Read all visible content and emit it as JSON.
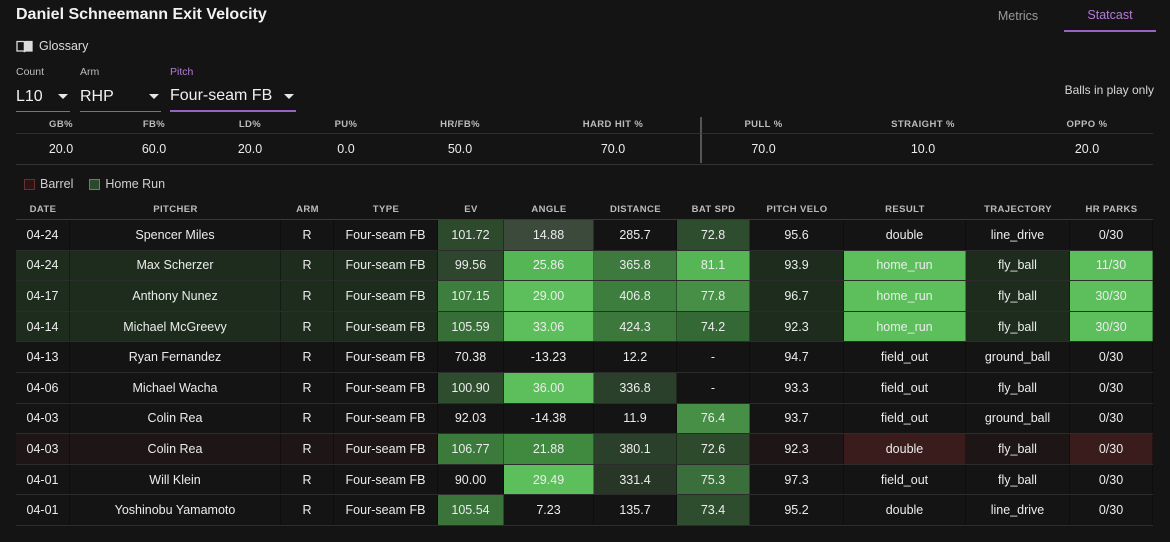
{
  "page": {
    "title": "Daniel Schneemann Exit Velocity"
  },
  "tabs": [
    {
      "label": "Metrics",
      "active": false
    },
    {
      "label": "Statcast",
      "active": true
    }
  ],
  "glossary": {
    "label": "Glossary",
    "icon": "book-icon"
  },
  "filters": {
    "count": {
      "label": "Count",
      "value": "L10"
    },
    "arm": {
      "label": "Arm",
      "value": "RHP"
    },
    "pitch": {
      "label": "Pitch",
      "value": "Four-seam FB"
    }
  },
  "balls_in_play_note": "Balls in play only",
  "summary": {
    "headers": [
      "GB%",
      "FB%",
      "LD%",
      "PU%",
      "HR/FB%",
      "HARD HIT %",
      "PULL %",
      "STRAIGHT %",
      "OPPO %"
    ],
    "values": [
      "20.0",
      "60.0",
      "20.0",
      "0.0",
      "50.0",
      "70.0",
      "70.0",
      "10.0",
      "20.0"
    ]
  },
  "legend": [
    {
      "label": "Barrel",
      "color": "#2a1414"
    },
    {
      "label": "Home Run",
      "color": "#2b4a2b"
    }
  ],
  "colors": {
    "accent": "#9a62c2",
    "background": "#141414",
    "green_strong": "#5cbf5c",
    "green_mid": "#3f8a3f",
    "green_dark": "#284228",
    "red_dark": "#3a1c1c"
  },
  "table": {
    "headers": [
      "DATE",
      "PITCHER",
      "ARM",
      "TYPE",
      "EV",
      "ANGLE",
      "DISTANCE",
      "BAT SPD",
      "PITCH VELO",
      "RESULT",
      "TRAJECTORY",
      "HR PARKS"
    ],
    "rows": [
      {
        "row_type": "normal",
        "cells": [
          "04-24",
          "Spencer Miles",
          "R",
          "Four-seam FB",
          "101.72",
          "14.88",
          "285.7",
          "72.8",
          "95.6",
          "double",
          "line_drive",
          "0/30"
        ],
        "shading": [
          "",
          "",
          "",
          "",
          "#2d4a2d",
          "#3c4a3c",
          "",
          "#2e4d2e",
          "",
          "",
          "",
          ""
        ]
      },
      {
        "row_type": "home_run",
        "cells": [
          "04-24",
          "Max Scherzer",
          "R",
          "Four-seam FB",
          "99.56",
          "25.86",
          "365.8",
          "81.1",
          "93.9",
          "home_run",
          "fly_ball",
          "11/30"
        ],
        "shading": [
          "",
          "",
          "",
          "",
          "#2d462d",
          "#55b655",
          "#3e7a3e",
          "#56b656",
          "",
          "#5cbf5c",
          "",
          "#5cbf5c"
        ]
      },
      {
        "row_type": "home_run",
        "cells": [
          "04-17",
          "Anthony Nunez",
          "R",
          "Four-seam FB",
          "107.15",
          "29.00",
          "406.8",
          "77.8",
          "96.7",
          "home_run",
          "fly_ball",
          "30/30"
        ],
        "shading": [
          "",
          "",
          "",
          "",
          "#3d7d3d",
          "#5cbf5c",
          "#3d7d3d",
          "#478f47",
          "",
          "#5cbf5c",
          "",
          "#5cbf5c"
        ]
      },
      {
        "row_type": "home_run",
        "cells": [
          "04-14",
          "Michael McGreevy",
          "R",
          "Four-seam FB",
          "105.59",
          "33.06",
          "424.3",
          "74.2",
          "92.3",
          "home_run",
          "fly_ball",
          "30/30"
        ],
        "shading": [
          "",
          "",
          "",
          "",
          "#376e37",
          "#5cbf5c",
          "#3c783c",
          "#346834",
          "",
          "#5cbf5c",
          "",
          "#5cbf5c"
        ]
      },
      {
        "row_type": "normal",
        "cells": [
          "04-13",
          "Ryan Fernandez",
          "R",
          "Four-seam FB",
          "70.38",
          "-13.23",
          "12.2",
          "-",
          "94.7",
          "field_out",
          "ground_ball",
          "0/30"
        ],
        "shading": [
          "",
          "",
          "",
          "",
          "",
          "",
          "",
          "",
          "",
          "",
          "",
          ""
        ]
      },
      {
        "row_type": "normal",
        "cells": [
          "04-06",
          "Michael Wacha",
          "R",
          "Four-seam FB",
          "100.90",
          "36.00",
          "336.8",
          "-",
          "93.3",
          "field_out",
          "fly_ball",
          "0/30"
        ],
        "shading": [
          "",
          "",
          "",
          "",
          "#2e4d2e",
          "#5cbf5c",
          "#2b402b",
          "",
          "",
          "",
          "",
          ""
        ]
      },
      {
        "row_type": "normal",
        "cells": [
          "04-03",
          "Colin Rea",
          "R",
          "Four-seam FB",
          "92.03",
          "-14.38",
          "11.9",
          "76.4",
          "93.7",
          "field_out",
          "ground_ball",
          "0/30"
        ],
        "shading": [
          "",
          "",
          "",
          "",
          "",
          "",
          "",
          "#478f47",
          "",
          "",
          "",
          ""
        ]
      },
      {
        "row_type": "barrel",
        "cells": [
          "04-03",
          "Colin Rea",
          "R",
          "Four-seam FB",
          "106.77",
          "21.88",
          "380.1",
          "72.6",
          "92.3",
          "double",
          "fly_ball",
          "0/30"
        ],
        "shading": [
          "",
          "",
          "",
          "",
          "#3b7a3b",
          "#3f8a3f",
          "#2b402b",
          "#2d4a2d",
          "",
          "#3a1c1c",
          "",
          "#3a1c1c"
        ]
      },
      {
        "row_type": "normal",
        "cells": [
          "04-01",
          "Will Klein",
          "R",
          "Four-seam FB",
          "90.00",
          "29.49",
          "331.4",
          "75.3",
          "97.3",
          "field_out",
          "fly_ball",
          "0/30"
        ],
        "shading": [
          "",
          "",
          "",
          "",
          "",
          "#5cbf5c",
          "#283628",
          "#3a6e3a",
          "",
          "",
          "",
          ""
        ]
      },
      {
        "row_type": "normal",
        "cells": [
          "04-01",
          "Yoshinobu Yamamoto",
          "R",
          "Four-seam FB",
          "105.54",
          "7.23",
          "135.7",
          "73.4",
          "95.2",
          "double",
          "line_drive",
          "0/30"
        ],
        "shading": [
          "",
          "",
          "",
          "",
          "#3a743a",
          "",
          "",
          "#2e4d2e",
          "",
          "",
          "",
          ""
        ]
      }
    ]
  }
}
